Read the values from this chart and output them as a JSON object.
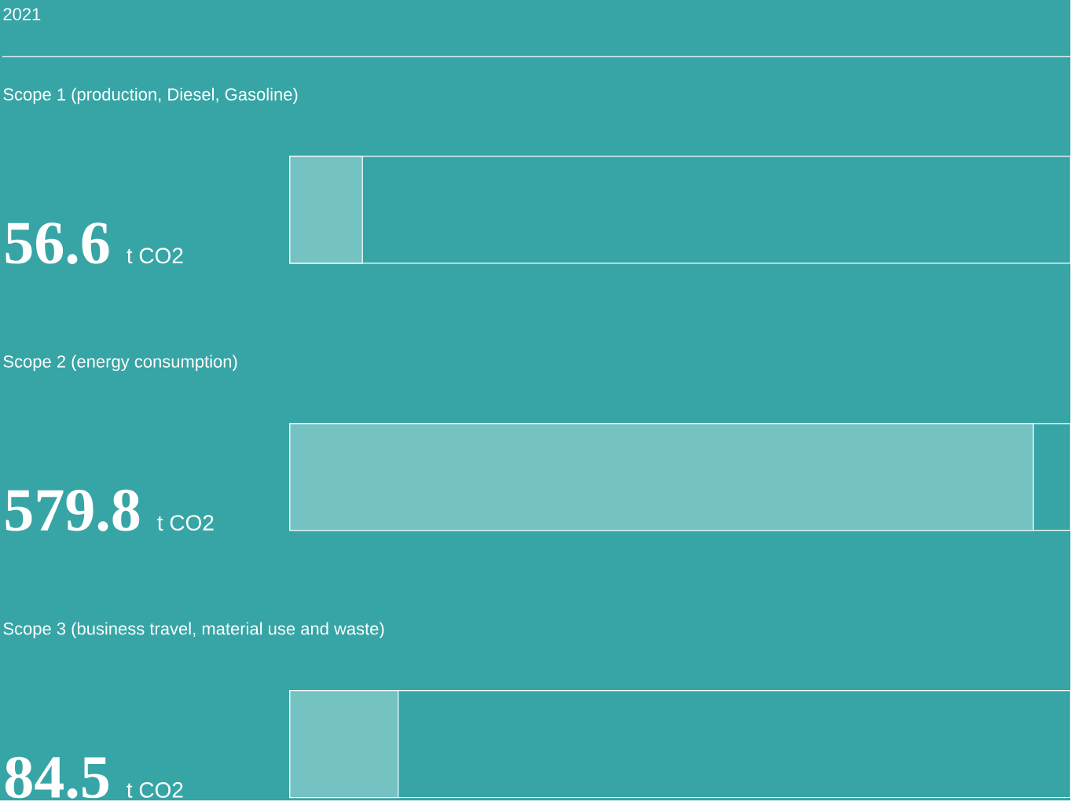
{
  "chart_data": {
    "type": "bar",
    "orientation": "horizontal",
    "title": "2021",
    "categories": [
      "Scope 1 (production, Diesel, Gasoline)",
      "Scope 2 (energy consumption)",
      "Scope 3 (business travel, material use and waste)"
    ],
    "values": [
      56.6,
      579.8,
      84.5
    ],
    "color": "#74c2c2",
    "xlabel": "t CO2",
    "data_labels": true
  }
}
